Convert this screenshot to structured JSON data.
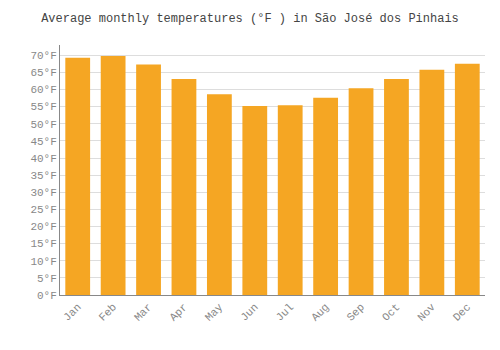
{
  "chart_data": {
    "type": "bar",
    "title": "Average monthly temperatures (°F ) in São José dos Pinhais",
    "categories": [
      "Jan",
      "Feb",
      "Mar",
      "Apr",
      "May",
      "Jun",
      "Jul",
      "Aug",
      "Sep",
      "Oct",
      "Nov",
      "Dec"
    ],
    "values": [
      69.3,
      69.8,
      67.3,
      63.1,
      58.6,
      55.2,
      55.4,
      57.6,
      60.4,
      63.1,
      65.8,
      67.5
    ],
    "color": "#F5A623",
    "ylim": [
      0,
      73
    ],
    "yticks": [
      {
        "value": 0,
        "label": "0°F"
      },
      {
        "value": 5,
        "label": "5°F"
      },
      {
        "value": 10,
        "label": "10°F"
      },
      {
        "value": 15,
        "label": "15°F"
      },
      {
        "value": 20,
        "label": "20°F"
      },
      {
        "value": 25,
        "label": "25°F"
      },
      {
        "value": 30,
        "label": "30°F"
      },
      {
        "value": 35,
        "label": "35°F"
      },
      {
        "value": 40,
        "label": "40°F"
      },
      {
        "value": 45,
        "label": "45°F"
      },
      {
        "value": 50,
        "label": "50°F"
      },
      {
        "value": 55,
        "label": "55°F"
      },
      {
        "value": 60,
        "label": "60°F"
      },
      {
        "value": 65,
        "label": "65°F"
      },
      {
        "value": 70,
        "label": "70°F"
      }
    ],
    "grid": true
  }
}
